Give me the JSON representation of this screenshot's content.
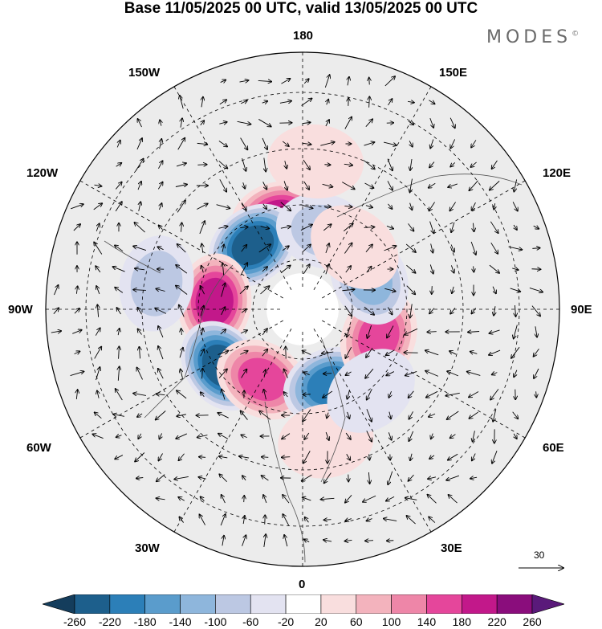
{
  "title": "Base 11/05/2025 00 UTC, valid 13/05/2025 00 UTC",
  "brand": "MODES",
  "brand_mark": "©",
  "longitude_labels": {
    "lon_180": "180",
    "lon_150w": "150W",
    "lon_150e": "150E",
    "lon_120w": "120W",
    "lon_120e": "120E",
    "lon_90w": "90W",
    "lon_90e": "90E",
    "lon_60w": "60W",
    "lon_60e": "60E",
    "lon_30w": "30W",
    "lon_30e": "30E",
    "lon_0": "0"
  },
  "vector_scale": {
    "label": "30",
    "icon": "arrow-right-icon"
  },
  "colorbar": {
    "labels": [
      "-260",
      "-220",
      "-180",
      "-140",
      "-100",
      "-60",
      "-20",
      "20",
      "60",
      "100",
      "140",
      "180",
      "220",
      "260"
    ],
    "colors": [
      "#143d5c",
      "#1d5f8c",
      "#2c7fb8",
      "#5a9ccc",
      "#8eb6dc",
      "#bcc8e3",
      "#e3e3f1",
      "#ffffff",
      "#f9dede",
      "#f3b3bd",
      "#ee86a8",
      "#e5469b",
      "#c2188a",
      "#8a0d7c",
      "#5a1a7a"
    ]
  },
  "map": {
    "projection": "north-polar-stereographic",
    "center_longitude_bottom": 0,
    "anomalies": [
      {
        "lon": -165,
        "lat": 50,
        "value": 210
      },
      {
        "lon": -142,
        "lat": 55,
        "value": -240
      },
      {
        "lon": -95,
        "lat": 52,
        "value": 200
      },
      {
        "lon": -55,
        "lat": 48,
        "value": -250
      },
      {
        "lon": -30,
        "lat": 55,
        "value": 160
      },
      {
        "lon": -100,
        "lat": 30,
        "value": -90
      },
      {
        "lon": 20,
        "lat": 55,
        "value": -230
      },
      {
        "lon": 70,
        "lat": 55,
        "value": 170
      },
      {
        "lon": 115,
        "lat": 58,
        "value": -150
      },
      {
        "lon": 165,
        "lat": 55,
        "value": -80
      },
      {
        "lon": 140,
        "lat": 55,
        "value": 70
      },
      {
        "lon": 175,
        "lat": 30,
        "value": 60
      },
      {
        "lon": 10,
        "lat": 35,
        "value": 60
      },
      {
        "lon": 40,
        "lat": 45,
        "value": -60
      }
    ]
  }
}
